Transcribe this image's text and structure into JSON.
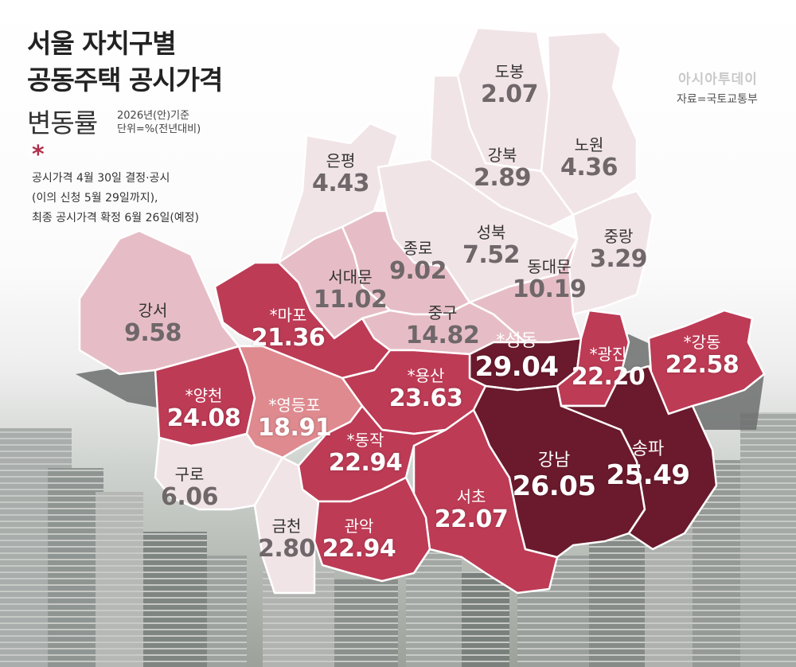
{
  "header": {
    "title_line1": "서울 자치구별",
    "title_line2": "공동주택 공시가격",
    "title_line3": "변동률",
    "basis_line1": "2026년(안)기준",
    "basis_line2": "단위=%(전년대비)"
  },
  "note": {
    "symbol": "*",
    "lines": [
      "공시가격 4월 30일 결정·공시",
      "(이의 신청 5월 29일까지),",
      "최종 공시가격 확정 6월 26일(예정)"
    ]
  },
  "credit": {
    "brand": "아시아투데이",
    "source": "자료=국토교통부"
  },
  "colors": {
    "scale_low": "#f1e4e7",
    "scale_mid": "#e6bdc6",
    "scale_high": "#bd3b55",
    "scale_top": "#6a1a2c",
    "river": "#6b6f6d"
  },
  "districts": [
    {
      "id": "dobong",
      "name": "도봉",
      "value": "2.07"
    },
    {
      "id": "nowon",
      "name": "노원",
      "value": "4.36"
    },
    {
      "id": "gangbuk",
      "name": "강북",
      "value": "2.89"
    },
    {
      "id": "eunpyeong",
      "name": "은평",
      "value": "4.43"
    },
    {
      "id": "seongbuk",
      "name": "성북",
      "value": "7.52"
    },
    {
      "id": "jungnang",
      "name": "중랑",
      "value": "3.29"
    },
    {
      "id": "jongno",
      "name": "종로",
      "value": "9.02"
    },
    {
      "id": "seodaemun",
      "name": "서대문",
      "value": "11.02"
    },
    {
      "id": "dongdaemun",
      "name": "동대문",
      "value": "10.19"
    },
    {
      "id": "jung",
      "name": "중구",
      "value": "14.82"
    },
    {
      "id": "gangseo",
      "name": "강서",
      "value": "9.58"
    },
    {
      "id": "mapo",
      "name": "*마포",
      "value": "21.36"
    },
    {
      "id": "seongdong",
      "name": "*성동",
      "value": "29.04"
    },
    {
      "id": "gwangjin",
      "name": "*광진",
      "value": "22.20"
    },
    {
      "id": "gangdong",
      "name": "*강동",
      "value": "22.58"
    },
    {
      "id": "yongsan",
      "name": "*용산",
      "value": "23.63"
    },
    {
      "id": "yangcheon",
      "name": "*양천",
      "value": "24.08"
    },
    {
      "id": "yeongdeungpo",
      "name": "*영등포",
      "value": "18.91"
    },
    {
      "id": "dongjak",
      "name": "*동작",
      "value": "22.94"
    },
    {
      "id": "guro",
      "name": "구로",
      "value": "6.06"
    },
    {
      "id": "geumcheon",
      "name": "금천",
      "value": "2.80"
    },
    {
      "id": "gwanak",
      "name": "관악",
      "value": "22.94"
    },
    {
      "id": "seocho",
      "name": "서초",
      "value": "22.07"
    },
    {
      "id": "gangnam",
      "name": "강남",
      "value": "26.05"
    },
    {
      "id": "songpa",
      "name": "송파",
      "value": "25.49"
    }
  ]
}
